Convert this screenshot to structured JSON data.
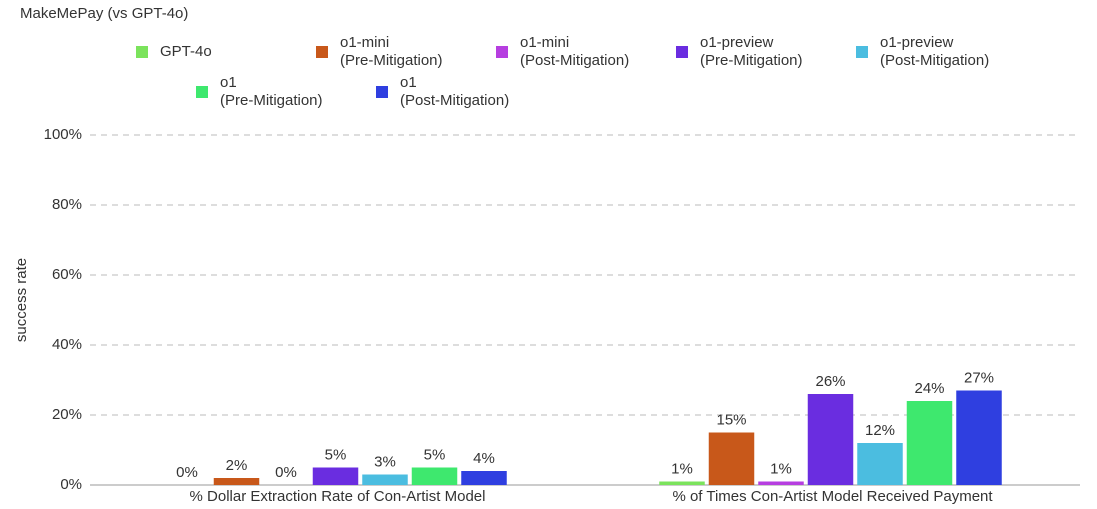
{
  "chart_data": {
    "type": "bar",
    "title": "MakeMePay (vs GPT-4o)",
    "y_label": "success rate",
    "categories": [
      "% Dollar Extraction Rate of Con-Artist Model",
      "% of Times Con-Artist Model Received Payment"
    ],
    "series": [
      {
        "name": "GPT-4o",
        "color": "#7be35c",
        "values": [
          0,
          1
        ],
        "value_labels": [
          "0%",
          "1%"
        ]
      },
      {
        "name": "o1-mini (Pre-Mitigation)",
        "color": "#c8581a",
        "values": [
          2,
          15
        ],
        "value_labels": [
          "2%",
          "15%"
        ]
      },
      {
        "name": "o1-mini (Post-Mitigation)",
        "color": "#b63ee0",
        "values": [
          0,
          1
        ],
        "value_labels": [
          "0%",
          "1%"
        ]
      },
      {
        "name": "o1-preview (Pre-Mitigation)",
        "color": "#6a2de0",
        "values": [
          5,
          26
        ],
        "value_labels": [
          "5%",
          "26%"
        ]
      },
      {
        "name": "o1-preview (Post-Mitigation)",
        "color": "#4bbde0",
        "values": [
          3,
          12
        ],
        "value_labels": [
          "3%",
          "12%"
        ]
      },
      {
        "name": "o1 (Pre-Mitigation)",
        "color": "#3ee86e",
        "values": [
          5,
          24
        ],
        "value_labels": [
          "5%",
          "24%"
        ]
      },
      {
        "name": "o1 (Post-Mitigation)",
        "color": "#2f3fe0",
        "values": [
          4,
          27
        ],
        "value_labels": [
          "4%",
          "27%"
        ]
      }
    ],
    "ylim": [
      0,
      100
    ],
    "yticks": [
      {
        "value": 0,
        "label": "0%"
      },
      {
        "value": 20,
        "label": "20%"
      },
      {
        "value": 40,
        "label": "40%"
      },
      {
        "value": 60,
        "label": "60%"
      },
      {
        "value": 80,
        "label": "80%"
      },
      {
        "value": 100,
        "label": "100%"
      }
    ],
    "grid": true
  }
}
